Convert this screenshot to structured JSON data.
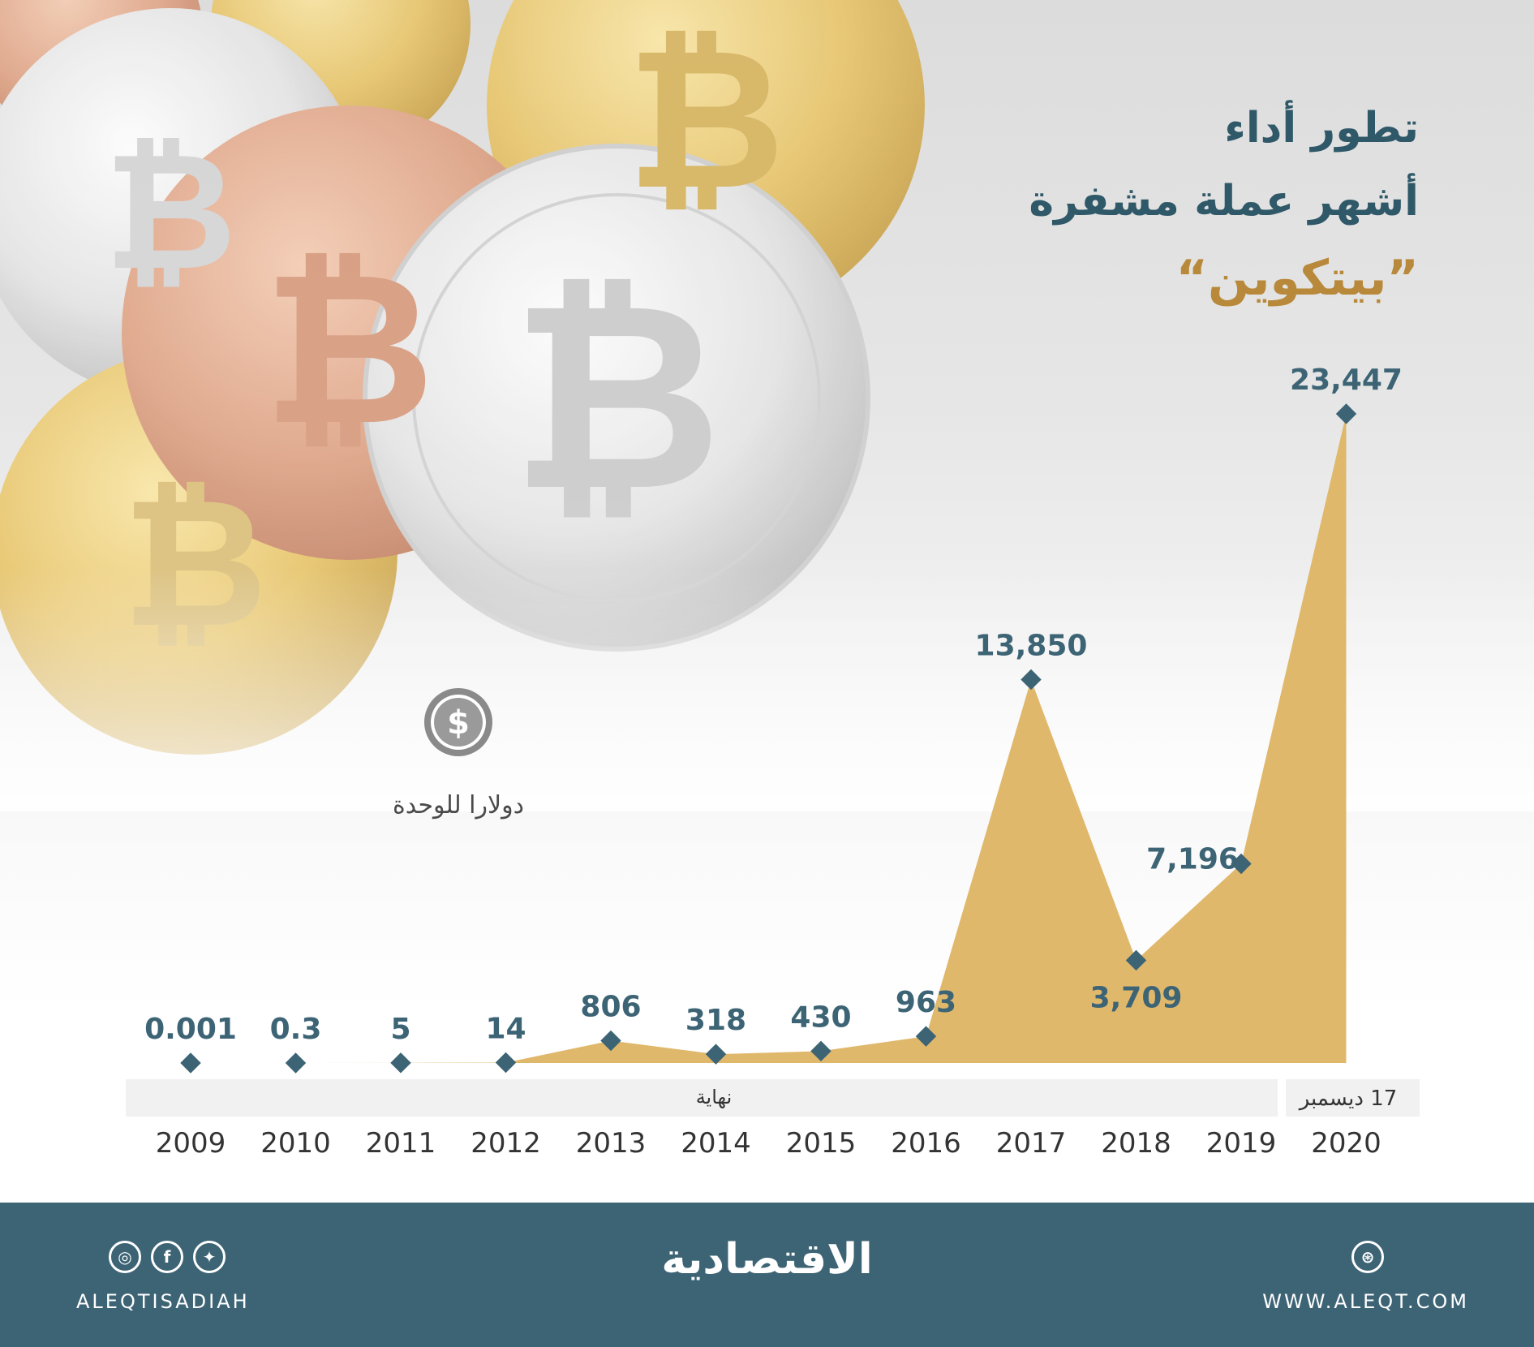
{
  "title": {
    "line1": "تطور أداء",
    "line2": "أشهر عملة مشفرة",
    "line3": "”بيتكوين“"
  },
  "unit_label": "دولارا للوحدة",
  "axis_notes": {
    "end_of_year": "نهاية",
    "date_2020": "17 ديسمبر"
  },
  "chart_data": {
    "type": "area",
    "x": [
      "2009",
      "2010",
      "2011",
      "2012",
      "2013",
      "2014",
      "2015",
      "2016",
      "2017",
      "2018",
      "2019",
      "2020"
    ],
    "values": [
      0.001,
      0.3,
      5,
      14,
      806,
      318,
      430,
      963,
      13850,
      3709,
      7196,
      23447
    ],
    "labels": [
      "0.001",
      "0.3",
      "5",
      "14",
      "806",
      "318",
      "430",
      "963",
      "13,850",
      "3,709",
      "7,196",
      "23,447"
    ],
    "ylim": [
      0,
      23447
    ],
    "grid": false,
    "colors": {
      "fill": "#e0b86c",
      "marker": "#3d6475",
      "label": "#3d6475",
      "axis_text": "#333333"
    }
  },
  "footer": {
    "handle": "ALEQTISADIAH",
    "url": "WWW.ALEQT.COM",
    "logo": "الاقتصادية",
    "icons": [
      "instagram-icon",
      "facebook-icon",
      "twitter-icon",
      "dribbble-icon"
    ],
    "background": "#3d6475"
  }
}
